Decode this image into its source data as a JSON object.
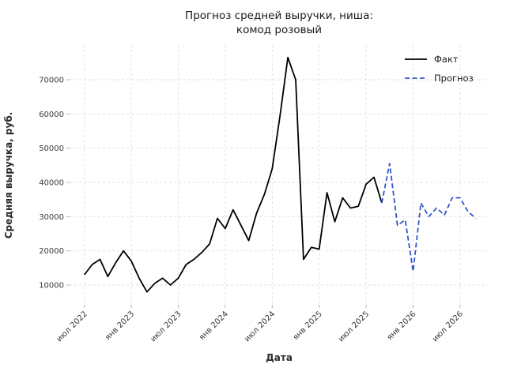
{
  "title": {
    "line1": "Прогноз средней выручки, ниша:",
    "line2": "комод розовый"
  },
  "axes": {
    "xlabel": "Дата",
    "ylabel": "Средняя выручка, руб."
  },
  "legend": {
    "fact_label": "Факт",
    "forecast_label": "Прогноз"
  },
  "colors": {
    "fact_line": "#000000",
    "forecast_line": "#3355cc",
    "grid": "#dedede",
    "tick_mark": "#b5b5b5",
    "text": "#1a1a1a",
    "background": "#ffffff"
  },
  "chart_data": {
    "type": "line",
    "title": "Прогноз средней выручки, ниша: комод розовый",
    "xlabel": "Дата",
    "ylabel": "Средняя выручка, руб.",
    "grid": true,
    "legend_position": "upper right",
    "ylim": [
      4000,
      80000
    ],
    "y_ticks": [
      10000,
      20000,
      30000,
      40000,
      50000,
      60000,
      70000
    ],
    "x_ticks": [
      {
        "date": "2022-07",
        "label": "июл 2022"
      },
      {
        "date": "2023-01",
        "label": "янв 2023"
      },
      {
        "date": "2023-07",
        "label": "июл 2023"
      },
      {
        "date": "2024-01",
        "label": "янв 2024"
      },
      {
        "date": "2024-07",
        "label": "июл 2024"
      },
      {
        "date": "2025-01",
        "label": "янв 2025"
      },
      {
        "date": "2025-07",
        "label": "июл 2025"
      },
      {
        "date": "2026-01",
        "label": "янв 2026"
      },
      {
        "date": "2026-07",
        "label": "июл 2026"
      }
    ],
    "series": [
      {
        "name": "Факт",
        "style": "solid",
        "color": "#000000",
        "x": [
          "2022-07",
          "2022-08",
          "2022-09",
          "2022-10",
          "2022-11",
          "2022-12",
          "2023-01",
          "2023-02",
          "2023-03",
          "2023-04",
          "2023-05",
          "2023-06",
          "2023-07",
          "2023-08",
          "2023-09",
          "2023-10",
          "2023-11",
          "2023-12",
          "2024-01",
          "2024-02",
          "2024-03",
          "2024-04",
          "2024-05",
          "2024-06",
          "2024-07",
          "2024-08",
          "2024-09",
          "2024-10",
          "2024-11",
          "2024-12",
          "2025-01",
          "2025-02",
          "2025-03",
          "2025-04",
          "2025-05",
          "2025-06",
          "2025-07",
          "2025-08",
          "2025-09"
        ],
        "values": [
          13000,
          16000,
          17500,
          12500,
          16500,
          20000,
          17000,
          12000,
          8000,
          10500,
          12000,
          10000,
          12000,
          16000,
          17500,
          19500,
          22000,
          29500,
          26500,
          32000,
          27500,
          23000,
          31000,
          36500,
          44000,
          59500,
          76500,
          70000,
          17500,
          21000,
          20500,
          37000,
          28500,
          35500,
          32500,
          33000,
          39500,
          41500,
          34000
        ]
      },
      {
        "name": "Прогноз",
        "style": "dashed",
        "color": "#3355cc",
        "x": [
          "2025-09",
          "2025-10",
          "2025-11",
          "2025-12",
          "2026-01",
          "2026-02",
          "2026-03",
          "2026-04",
          "2026-05",
          "2026-06",
          "2026-07",
          "2026-08",
          "2026-09"
        ],
        "values": [
          34000,
          45500,
          27500,
          29000,
          14000,
          34000,
          30000,
          32500,
          30500,
          35500,
          35500,
          31500,
          29500
        ]
      }
    ]
  }
}
